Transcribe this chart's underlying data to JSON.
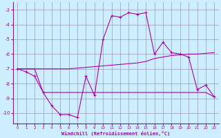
{
  "xlabel": "Windchill (Refroidissement éolien,°C)",
  "xlim": [
    -0.5,
    23.5
  ],
  "ylim": [
    -10.7,
    -2.5
  ],
  "yticks": [
    -10,
    -9,
    -8,
    -7,
    -6,
    -5,
    -4,
    -3
  ],
  "xticks": [
    0,
    1,
    2,
    3,
    4,
    5,
    6,
    7,
    8,
    9,
    10,
    11,
    12,
    13,
    14,
    15,
    16,
    17,
    18,
    19,
    20,
    21,
    22,
    23
  ],
  "bg_color": "#cceeff",
  "grid_color": "#9999bb",
  "line_color": "#aa00aa",
  "line1_x": [
    0,
    1,
    2,
    3,
    4,
    5,
    6,
    7,
    8,
    9,
    10,
    11,
    12,
    13,
    14,
    15,
    16,
    17,
    18,
    19,
    20,
    21,
    22,
    23
  ],
  "line1_y": [
    -7.0,
    -7.2,
    -7.5,
    -8.6,
    -9.5,
    -10.1,
    -10.1,
    -10.3,
    -7.5,
    -8.8,
    -5.0,
    -3.4,
    -3.5,
    -3.2,
    -3.3,
    -3.2,
    -6.0,
    -5.2,
    -5.9,
    -6.0,
    -6.2,
    -8.4,
    -8.1,
    -8.9
  ],
  "line2_x": [
    0,
    1,
    2,
    3,
    4,
    5,
    6,
    7,
    8,
    9,
    10,
    11,
    12,
    13,
    14,
    15,
    16,
    17,
    18,
    19,
    20,
    21,
    22,
    23
  ],
  "line2_y": [
    -7.0,
    -7.0,
    -7.0,
    -8.6,
    -8.6,
    -8.6,
    -8.6,
    -8.6,
    -8.6,
    -8.6,
    -8.6,
    -8.6,
    -8.6,
    -8.6,
    -8.6,
    -8.6,
    -8.6,
    -8.6,
    -8.6,
    -8.6,
    -8.6,
    -8.6,
    -8.6,
    -8.9
  ],
  "line3_x": [
    0,
    1,
    2,
    3,
    4,
    5,
    6,
    7,
    8,
    9,
    10,
    11,
    12,
    13,
    14,
    15,
    16,
    17,
    18,
    19,
    20,
    21,
    22,
    23
  ],
  "line3_y": [
    -7.0,
    -7.0,
    -7.0,
    -7.0,
    -7.0,
    -7.0,
    -7.0,
    -6.95,
    -6.9,
    -6.85,
    -6.8,
    -6.75,
    -6.7,
    -6.65,
    -6.6,
    -6.5,
    -6.3,
    -6.2,
    -6.1,
    -6.05,
    -6.0,
    -6.0,
    -5.95,
    -5.9
  ]
}
